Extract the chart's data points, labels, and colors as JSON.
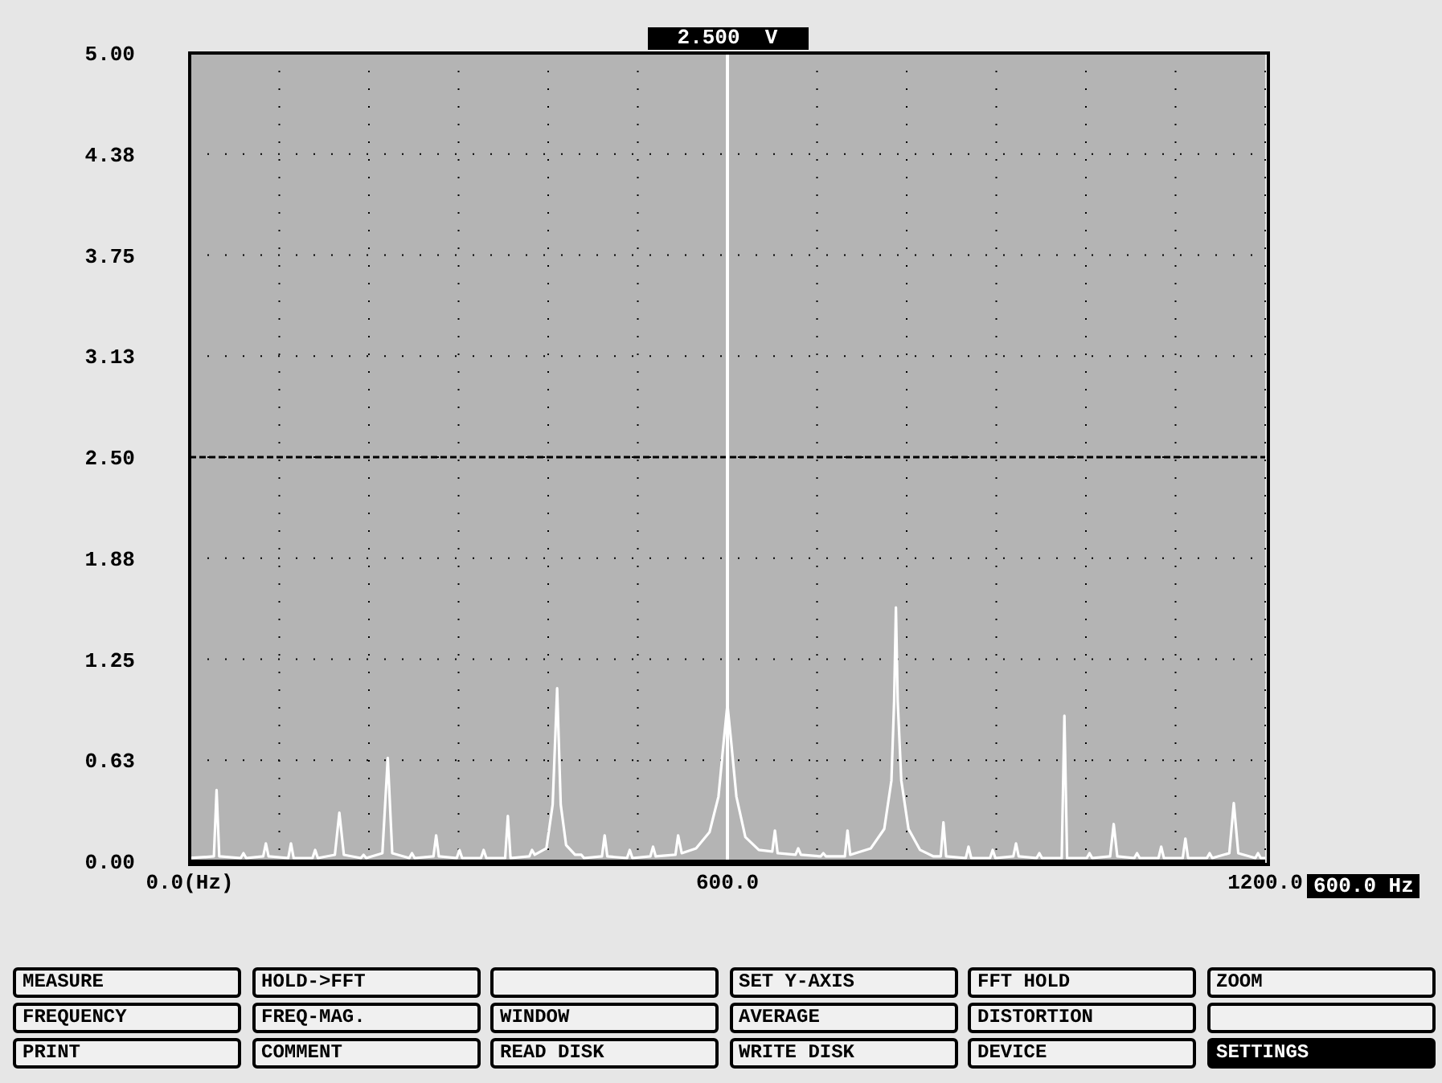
{
  "chart_data": {
    "type": "line",
    "x": [
      0,
      27,
      30,
      33,
      57,
      60,
      63,
      82,
      85,
      88,
      110,
      113,
      116,
      137,
      140,
      143,
      162,
      167,
      172,
      191,
      194,
      197,
      215,
      221,
      226,
      245,
      248,
      251,
      272,
      275,
      278,
      298,
      301,
      304,
      325,
      328,
      331,
      352,
      355,
      358,
      379,
      382,
      385,
      398,
      405,
      410,
      414,
      420,
      430,
      437,
      440,
      460,
      463,
      466,
      488,
      491,
      494,
      514,
      517,
      520,
      542,
      545,
      549,
      565,
      580,
      590,
      596,
      600,
      604,
      610,
      620,
      635,
      650,
      653,
      656,
      676,
      679,
      682,
      704,
      707,
      710,
      731,
      734,
      737,
      760,
      775,
      783,
      786,
      788,
      790,
      794,
      802,
      815,
      830,
      838,
      841,
      844,
      866,
      869,
      872,
      893,
      896,
      899,
      919,
      922,
      925,
      945,
      948,
      951,
      973,
      976,
      979,
      1001,
      1004,
      1007,
      1027,
      1031,
      1035,
      1054,
      1057,
      1060,
      1081,
      1084,
      1087,
      1108,
      1111,
      1114,
      1135,
      1138,
      1141,
      1160,
      1165,
      1170,
      1189,
      1192,
      1195,
      1200
    ],
    "series": [
      {
        "color": "#ffffff",
        "values": [
          0.02,
          0.03,
          0.44,
          0.03,
          0.02,
          0.05,
          0.02,
          0.03,
          0.11,
          0.03,
          0.02,
          0.11,
          0.02,
          0.02,
          0.07,
          0.02,
          0.04,
          0.3,
          0.04,
          0.02,
          0.04,
          0.02,
          0.05,
          0.64,
          0.05,
          0.02,
          0.05,
          0.02,
          0.03,
          0.16,
          0.03,
          0.02,
          0.07,
          0.02,
          0.02,
          0.07,
          0.02,
          0.02,
          0.28,
          0.02,
          0.03,
          0.07,
          0.04,
          0.08,
          0.35,
          1.07,
          0.35,
          0.1,
          0.04,
          0.04,
          0.02,
          0.03,
          0.16,
          0.03,
          0.02,
          0.07,
          0.02,
          0.03,
          0.09,
          0.03,
          0.04,
          0.16,
          0.05,
          0.08,
          0.18,
          0.4,
          0.75,
          0.97,
          0.75,
          0.4,
          0.15,
          0.07,
          0.06,
          0.19,
          0.05,
          0.04,
          0.08,
          0.04,
          0.03,
          0.05,
          0.03,
          0.03,
          0.19,
          0.04,
          0.08,
          0.2,
          0.5,
          0.99,
          1.57,
          0.99,
          0.5,
          0.2,
          0.07,
          0.03,
          0.03,
          0.24,
          0.03,
          0.02,
          0.09,
          0.02,
          0.02,
          0.07,
          0.02,
          0.03,
          0.11,
          0.03,
          0.02,
          0.05,
          0.02,
          0.02,
          0.9,
          0.02,
          0.02,
          0.05,
          0.02,
          0.03,
          0.23,
          0.03,
          0.02,
          0.05,
          0.02,
          0.02,
          0.09,
          0.02,
          0.02,
          0.14,
          0.02,
          0.02,
          0.05,
          0.02,
          0.05,
          0.36,
          0.05,
          0.02,
          0.05,
          0.02,
          0.02
        ]
      }
    ],
    "xlim": [
      0,
      1200
    ],
    "xticks": [
      {
        "value": 0,
        "label": "0.0(Hz)"
      },
      {
        "value": 100,
        "label": null
      },
      {
        "value": 200,
        "label": null
      },
      {
        "value": 300,
        "label": null
      },
      {
        "value": 400,
        "label": null
      },
      {
        "value": 500,
        "label": null
      },
      {
        "value": 600,
        "label": "600.0"
      },
      {
        "value": 700,
        "label": null
      },
      {
        "value": 800,
        "label": null
      },
      {
        "value": 900,
        "label": null
      },
      {
        "value": 1000,
        "label": null
      },
      {
        "value": 1100,
        "label": null
      },
      {
        "value": 1200,
        "label": "1200.0"
      }
    ],
    "ylim": [
      0,
      5
    ],
    "yticks": [
      {
        "value": 0,
        "label": "0.00"
      },
      {
        "value": 0.625,
        "label": "0.63"
      },
      {
        "value": 1.25,
        "label": "1.25"
      },
      {
        "value": 1.875,
        "label": "1.88"
      },
      {
        "value": 2.5,
        "label": "2.50"
      },
      {
        "value": 3.125,
        "label": "3.13"
      },
      {
        "value": 3.75,
        "label": "3.75"
      },
      {
        "value": 4.375,
        "label": "4.38"
      },
      {
        "value": 5,
        "label": "5.00"
      }
    ],
    "grid": true,
    "ref_lines": [
      {
        "axis": "y",
        "value": 2.5,
        "color": "#000000",
        "line_style": "dashed"
      },
      {
        "axis": "x",
        "value": 600,
        "label": "600.0 Hz",
        "color": "#ffffff",
        "line_style": "solid"
      }
    ],
    "annotations": [
      {
        "text": "2.500  V",
        "x": 600,
        "y": 5
      },
      "MEASURE",
      "HOLD->FFT",
      "SET Y-AXIS",
      "FFT HOLD",
      "ZOOM",
      "FREQUENCY",
      "FREQ-MAG.",
      "WINDOW",
      "AVERAGE",
      "DISTORTION",
      "PRINT",
      "COMMENT",
      "READ DISK",
      "WRITE DISK",
      "DEVICE",
      "SETTINGS"
    ]
  }
}
